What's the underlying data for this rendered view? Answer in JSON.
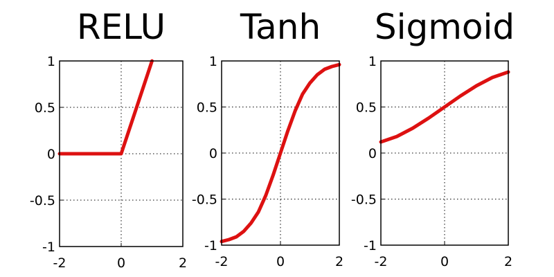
{
  "chart_data": [
    {
      "type": "line",
      "title": "RELU",
      "xlim": [
        -2,
        2
      ],
      "ylim": [
        -1,
        1
      ],
      "xticks": [
        -2,
        0,
        2
      ],
      "yticks": [
        1,
        0.5,
        0,
        -0.5,
        -1
      ],
      "xtick_labels": [
        "-2",
        "0",
        "2"
      ],
      "ytick_labels": [
        "1",
        "0.5",
        "0",
        "-0.5",
        "-1"
      ],
      "grid": true,
      "line_color": "#dd1111",
      "series": [
        {
          "x": [
            -2,
            -1,
            0,
            0.5,
            1
          ],
          "y": [
            0,
            0,
            0,
            0.5,
            1
          ]
        }
      ]
    },
    {
      "type": "line",
      "title": "Tanh",
      "xlim": [
        -2,
        2
      ],
      "ylim": [
        -1,
        1
      ],
      "xticks": [
        -2,
        0,
        2
      ],
      "yticks": [
        1,
        0.5,
        0,
        -0.5,
        -1
      ],
      "xtick_labels": [
        "-2",
        "0",
        "2"
      ],
      "ytick_labels": [
        "1",
        "0.5",
        "0",
        "-0.5",
        "-1"
      ],
      "grid": true,
      "line_color": "#dd1111",
      "series": [
        {
          "x": [
            -2,
            -1.75,
            -1.5,
            -1.25,
            -1,
            -0.75,
            -0.5,
            -0.25,
            0,
            0.25,
            0.5,
            0.75,
            1,
            1.25,
            1.5,
            1.75,
            2
          ],
          "y": [
            -0.96,
            -0.94,
            -0.91,
            -0.85,
            -0.76,
            -0.64,
            -0.46,
            -0.24,
            0,
            0.24,
            0.46,
            0.64,
            0.76,
            0.85,
            0.91,
            0.94,
            0.96
          ]
        }
      ]
    },
    {
      "type": "line",
      "title": "Sigmoid",
      "xlim": [
        -2,
        2
      ],
      "ylim": [
        -1,
        1
      ],
      "xticks": [
        -2,
        0,
        2
      ],
      "yticks": [
        1,
        0.5,
        0,
        -0.5,
        -1
      ],
      "xtick_labels": [
        "-2",
        "0",
        "2"
      ],
      "ytick_labels": [
        "1",
        "0.5",
        "0",
        "-0.5",
        "-1"
      ],
      "grid": true,
      "line_color": "#dd1111",
      "series": [
        {
          "x": [
            -2,
            -1.5,
            -1,
            -0.5,
            0,
            0.5,
            1,
            1.5,
            2
          ],
          "y": [
            0.12,
            0.18,
            0.27,
            0.38,
            0.5,
            0.62,
            0.73,
            0.82,
            0.88
          ]
        }
      ]
    }
  ]
}
